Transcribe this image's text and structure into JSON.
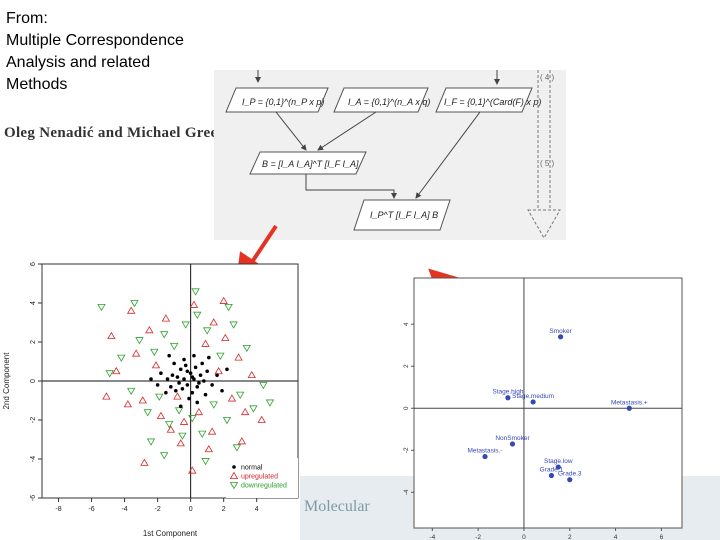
{
  "slide": {
    "from_label": "From:",
    "book_title_line1": "Multiple Correspondence",
    "book_title_line2": "Analysis and related",
    "book_title_line3": "Methods",
    "authors": "Oleg Nenadić and Michael Greenacre",
    "background_text": "Molecular"
  },
  "diagram": {
    "step_labels": [
      "( 4 )",
      "( 5 )"
    ],
    "box_labels": [
      "I_P = {0,1}^(n_P x p)",
      "I_A = {0,1}^(n_A x q)",
      "I_F = {0,1}^(Card(F) x p)",
      "B = [I_A I_A]^T [I_F I_A]",
      "I_P^T [I_F I_A] B"
    ],
    "arrow_color": "#e53323"
  },
  "chart_data": [
    {
      "type": "scatter",
      "xlabel": "1st Component",
      "ylabel": "2nd Component",
      "xlim": [
        -9,
        6.5
      ],
      "ylim": [
        -6,
        6
      ],
      "xticks": [
        -8,
        -6,
        -4,
        -2,
        0,
        2,
        4
      ],
      "yticks": [
        -6,
        -4,
        -2,
        0,
        2,
        4,
        6
      ],
      "legend": {
        "position": "bottom-right",
        "entries": [
          "normal",
          "upregulated",
          "downregulated"
        ]
      },
      "series": [
        {
          "name": "normal",
          "marker": "dot",
          "color": "#000000",
          "points": [
            [
              -1.4,
              0.1
            ],
            [
              -1.1,
              0.3
            ],
            [
              -0.8,
              0.2
            ],
            [
              -0.6,
              0.6
            ],
            [
              -0.4,
              0.1
            ],
            [
              -0.2,
              -0.2
            ],
            [
              0,
              0.4
            ],
            [
              0.2,
              0.1
            ],
            [
              0.4,
              -0.3
            ],
            [
              0.6,
              0.3
            ],
            [
              0.8,
              0
            ],
            [
              1,
              0.5
            ],
            [
              -1.2,
              -0.3
            ],
            [
              -0.9,
              -0.5
            ],
            [
              -0.5,
              -0.4
            ],
            [
              -0.3,
              0.8
            ],
            [
              0.1,
              -0.6
            ],
            [
              0.3,
              0.7
            ],
            [
              0.5,
              -0.1
            ],
            [
              -0.7,
              -0.1
            ],
            [
              -1.5,
              -0.6
            ],
            [
              1.3,
              -0.2
            ],
            [
              -0.1,
              -0.9
            ],
            [
              0.7,
              0.9
            ],
            [
              -1.8,
              0.4
            ],
            [
              0.9,
              -0.7
            ],
            [
              -0.4,
              1.1
            ],
            [
              1.6,
              0.3
            ],
            [
              -2,
              -0.2
            ],
            [
              0.2,
              1.3
            ],
            [
              -0.6,
              -1.3
            ],
            [
              1.1,
              1.2
            ],
            [
              -1,
              0.9
            ],
            [
              0.4,
              -1.1
            ],
            [
              -2.4,
              0.1
            ],
            [
              1.9,
              -0.5
            ],
            [
              2.2,
              0.6
            ],
            [
              -1.3,
              1.3
            ],
            [
              0.1,
              0.2
            ],
            [
              -0.2,
              0.5
            ]
          ]
        },
        {
          "name": "upregulated",
          "marker": "triangle-up",
          "color": "#d62728",
          "points": [
            [
              -4.8,
              2.3
            ],
            [
              -4.5,
              0.5
            ],
            [
              -3.8,
              -1.2
            ],
            [
              -3.3,
              1.4
            ],
            [
              -2.9,
              -1
            ],
            [
              -2.5,
              2.6
            ],
            [
              -2.1,
              0.8
            ],
            [
              -1.8,
              -1.8
            ],
            [
              -1.5,
              3.2
            ],
            [
              -1.2,
              -2.5
            ],
            [
              -0.8,
              -0.8
            ],
            [
              -0.4,
              -2.1
            ],
            [
              0.2,
              3.9
            ],
            [
              0.5,
              -1.6
            ],
            [
              0.9,
              1.9
            ],
            [
              1.3,
              -2.6
            ],
            [
              1.7,
              0.5
            ],
            [
              2.1,
              2.2
            ],
            [
              2.5,
              -0.9
            ],
            [
              2.9,
              1.2
            ],
            [
              3.3,
              -1.6
            ],
            [
              3.7,
              0.3
            ],
            [
              -2.8,
              -4.2
            ],
            [
              -0.6,
              -3.2
            ],
            [
              1.1,
              -3.5
            ],
            [
              0.1,
              -4.6
            ],
            [
              3.1,
              -3.1
            ],
            [
              -3.6,
              3.6
            ],
            [
              2,
              4.1
            ],
            [
              -5.1,
              -0.8
            ],
            [
              4.3,
              -2
            ],
            [
              1.4,
              3
            ]
          ]
        },
        {
          "name": "downregulated",
          "marker": "triangle-down",
          "color": "#2ca02c",
          "points": [
            [
              -4.2,
              1.2
            ],
            [
              -3.6,
              -0.5
            ],
            [
              -3.1,
              2.1
            ],
            [
              -2.6,
              -1.6
            ],
            [
              -2.2,
              1.5
            ],
            [
              -1.9,
              -0.8
            ],
            [
              -1.6,
              2.4
            ],
            [
              -1.3,
              -2.2
            ],
            [
              -1,
              1.8
            ],
            [
              -0.7,
              -1.5
            ],
            [
              -0.3,
              2.9
            ],
            [
              0.1,
              -1.9
            ],
            [
              0.4,
              3.4
            ],
            [
              0.7,
              -2.7
            ],
            [
              1,
              2.6
            ],
            [
              1.4,
              -1.2
            ],
            [
              1.8,
              1.3
            ],
            [
              2.2,
              -2
            ],
            [
              2.6,
              2.9
            ],
            [
              3,
              -0.7
            ],
            [
              3.4,
              1.7
            ],
            [
              3.8,
              -1.4
            ],
            [
              -5.4,
              3.8
            ],
            [
              -3.4,
              4
            ],
            [
              0.3,
              4.6
            ],
            [
              2.3,
              3.8
            ],
            [
              4.4,
              -0.2
            ],
            [
              -1.6,
              -3.8
            ],
            [
              0.9,
              -4.1
            ],
            [
              -0.5,
              -2.8
            ],
            [
              4.8,
              -1.1
            ],
            [
              -4.9,
              0.4
            ],
            [
              -2.4,
              -3.1
            ],
            [
              2.8,
              -3.4
            ]
          ]
        }
      ]
    },
    {
      "type": "scatter",
      "xlabel": "",
      "ylabel": "",
      "xlim": [
        -4.8,
        6.9
      ],
      "ylim": [
        -5.7,
        6.2
      ],
      "xticks": [
        -4,
        -2,
        0,
        2,
        4,
        6
      ],
      "yticks": [
        -4,
        -2,
        0,
        2,
        4
      ],
      "series": [
        {
          "marker": "dot",
          "color": "#3548b6",
          "points": [
            {
              "label": "Smoker",
              "x": 1.6,
              "y": 3.4
            },
            {
              "label": "Stage.high",
              "x": -0.7,
              "y": 0.5
            },
            {
              "label": "Stage.medium",
              "x": 0.4,
              "y": 0.3
            },
            {
              "label": "Metastasis.+",
              "x": 4.6,
              "y": 0
            },
            {
              "label": "NonSmoker",
              "x": -0.5,
              "y": -1.7
            },
            {
              "label": "Metastasis.-",
              "x": -1.7,
              "y": -2.3
            },
            {
              "label": "Stage.low",
              "x": 1.5,
              "y": -2.8
            },
            {
              "label": "Grade.1",
              "x": 1.2,
              "y": -3.2
            },
            {
              "label": "Grade.3",
              "x": 2.0,
              "y": -3.4
            }
          ]
        }
      ]
    }
  ]
}
